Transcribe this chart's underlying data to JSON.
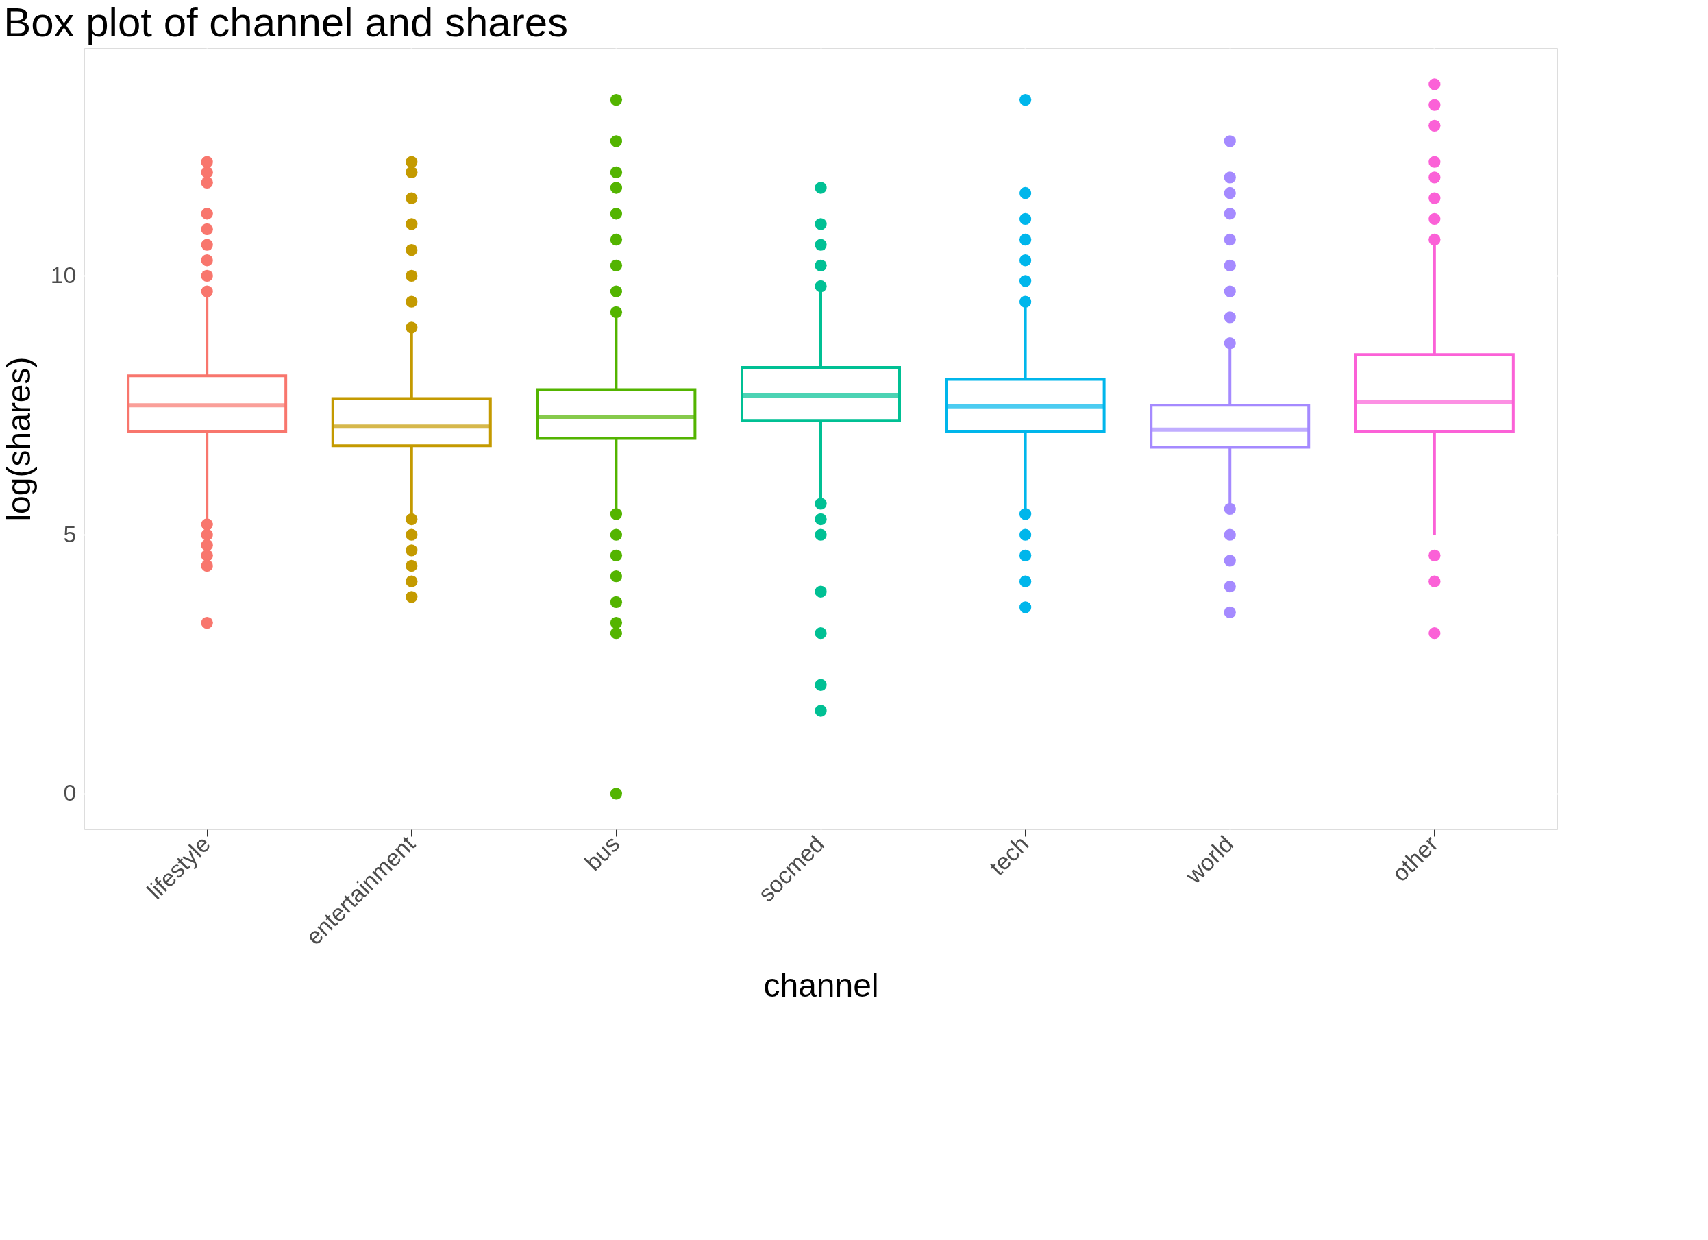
{
  "chart_data": {
    "type": "box",
    "title": "Box plot of channel and shares",
    "xlabel": "channel",
    "ylabel": "log(shares)",
    "categories": [
      "lifestyle",
      "entertainment",
      "bus",
      "socmed",
      "tech",
      "world",
      "other"
    ],
    "colors": [
      "#f8766d",
      "#c49a00",
      "#53b400",
      "#00c094",
      "#00b6eb",
      "#a58aff",
      "#fb61d7"
    ],
    "boxes": [
      {
        "low": 5.0,
        "q1": 7.0,
        "median": 7.5,
        "q3": 8.07,
        "high": 9.6,
        "outliers": [
          9.7,
          10.0,
          10.3,
          10.6,
          10.9,
          11.2,
          11.8,
          12.0,
          12.2,
          5.2,
          5.0,
          4.8,
          4.6,
          4.4,
          3.3
        ]
      },
      {
        "low": 5.4,
        "q1": 6.72,
        "median": 7.09,
        "q3": 7.63,
        "high": 8.9,
        "outliers": [
          9.0,
          9.5,
          10.0,
          10.5,
          11.0,
          11.5,
          12.0,
          12.2,
          5.3,
          5.0,
          4.7,
          4.4,
          4.1,
          3.8
        ]
      },
      {
        "low": 5.5,
        "q1": 6.86,
        "median": 7.28,
        "q3": 7.8,
        "high": 9.2,
        "outliers": [
          9.3,
          9.7,
          10.2,
          10.7,
          11.2,
          11.7,
          12.0,
          12.6,
          13.4,
          5.4,
          5.0,
          4.6,
          4.2,
          3.7,
          3.3,
          3.1,
          0
        ]
      },
      {
        "low": 5.7,
        "q1": 7.21,
        "median": 7.69,
        "q3": 8.23,
        "high": 9.7,
        "outliers": [
          9.8,
          10.2,
          10.6,
          11.0,
          11.7,
          5.6,
          5.3,
          5.0,
          3.9,
          3.1,
          2.1,
          1.6
        ]
      },
      {
        "low": 5.5,
        "q1": 6.99,
        "median": 7.48,
        "q3": 8.0,
        "high": 9.4,
        "outliers": [
          9.5,
          9.9,
          10.3,
          10.7,
          11.1,
          11.6,
          13.4,
          5.4,
          5.0,
          4.6,
          4.1,
          3.6
        ]
      },
      {
        "low": 5.6,
        "q1": 6.69,
        "median": 7.03,
        "q3": 7.5,
        "high": 8.6,
        "outliers": [
          8.7,
          9.2,
          9.7,
          10.2,
          10.7,
          11.2,
          11.6,
          11.9,
          12.6,
          5.5,
          5.0,
          4.5,
          4.0,
          3.5
        ]
      },
      {
        "low": 5.0,
        "q1": 6.99,
        "median": 7.57,
        "q3": 8.48,
        "high": 10.6,
        "outliers": [
          10.7,
          11.1,
          11.5,
          11.9,
          12.2,
          12.9,
          13.3,
          13.7,
          4.6,
          4.1,
          3.1
        ]
      }
    ],
    "ylim": [
      -0.69,
      14.4
    ],
    "yticks": [
      0,
      5,
      10
    ],
    "grid": true
  }
}
